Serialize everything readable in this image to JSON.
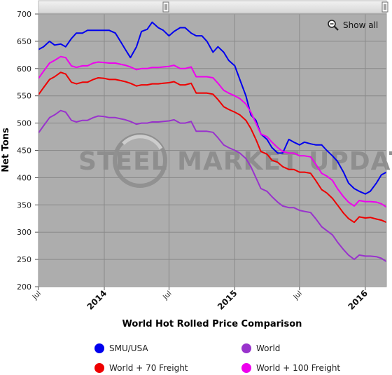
{
  "chart_data": {
    "type": "line",
    "title": "",
    "xlabel": "World Hot Rolled Price Comparison",
    "ylabel": "Net Tons",
    "ylim": [
      200,
      700
    ],
    "yticks": [
      200,
      250,
      300,
      350,
      400,
      450,
      500,
      550,
      600,
      650,
      700
    ],
    "xlim": [
      "2013-07-01",
      "2016-02-29"
    ],
    "xticks": [
      {
        "date": "2013-07-01",
        "label": "Jul",
        "bold": false
      },
      {
        "date": "2014-01-01",
        "label": "2014",
        "bold": true
      },
      {
        "date": "2014-07-01",
        "label": "Jul",
        "bold": false
      },
      {
        "date": "2015-01-01",
        "label": "2015",
        "bold": true
      },
      {
        "date": "2015-07-01",
        "label": "Jul",
        "bold": false
      },
      {
        "date": "2016-01-01",
        "label": "2016",
        "bold": true
      }
    ],
    "grid": true,
    "legend_position": "bottom",
    "watermark": "STEEL MARKET UPDATE",
    "zoom_button": "Show all",
    "series": [
      {
        "name": "SMU/USA",
        "color": "#0000ee",
        "points": [
          [
            "2013-07-01",
            635
          ],
          [
            "2013-07-15",
            640
          ],
          [
            "2013-08-01",
            650
          ],
          [
            "2013-08-15",
            643
          ],
          [
            "2013-09-01",
            645
          ],
          [
            "2013-09-15",
            640
          ],
          [
            "2013-10-01",
            655
          ],
          [
            "2013-10-15",
            665
          ],
          [
            "2013-11-01",
            665
          ],
          [
            "2013-11-15",
            670
          ],
          [
            "2013-12-01",
            670
          ],
          [
            "2013-12-15",
            670
          ],
          [
            "2014-01-01",
            670
          ],
          [
            "2014-01-15",
            670
          ],
          [
            "2014-02-01",
            665
          ],
          [
            "2014-02-15",
            650
          ],
          [
            "2014-03-01",
            635
          ],
          [
            "2014-03-15",
            620
          ],
          [
            "2014-04-01",
            640
          ],
          [
            "2014-04-15",
            668
          ],
          [
            "2014-05-01",
            672
          ],
          [
            "2014-05-15",
            685
          ],
          [
            "2014-06-01",
            675
          ],
          [
            "2014-06-15",
            670
          ],
          [
            "2014-07-01",
            660
          ],
          [
            "2014-07-15",
            668
          ],
          [
            "2014-08-01",
            675
          ],
          [
            "2014-08-15",
            675
          ],
          [
            "2014-09-01",
            665
          ],
          [
            "2014-09-15",
            660
          ],
          [
            "2014-10-01",
            660
          ],
          [
            "2014-10-15",
            650
          ],
          [
            "2014-11-01",
            630
          ],
          [
            "2014-11-15",
            640
          ],
          [
            "2014-12-01",
            630
          ],
          [
            "2014-12-15",
            615
          ],
          [
            "2015-01-01",
            605
          ],
          [
            "2015-01-15",
            580
          ],
          [
            "2015-02-01",
            550
          ],
          [
            "2015-02-15",
            515
          ],
          [
            "2015-03-01",
            505
          ],
          [
            "2015-03-15",
            480
          ],
          [
            "2015-04-01",
            470
          ],
          [
            "2015-04-15",
            455
          ],
          [
            "2015-05-01",
            445
          ],
          [
            "2015-05-15",
            445
          ],
          [
            "2015-06-01",
            470
          ],
          [
            "2015-06-15",
            465
          ],
          [
            "2015-07-01",
            460
          ],
          [
            "2015-07-15",
            465
          ],
          [
            "2015-08-01",
            462
          ],
          [
            "2015-08-15",
            460
          ],
          [
            "2015-09-01",
            460
          ],
          [
            "2015-09-15",
            450
          ],
          [
            "2015-10-01",
            440
          ],
          [
            "2015-10-15",
            430
          ],
          [
            "2015-11-01",
            410
          ],
          [
            "2015-11-15",
            390
          ],
          [
            "2015-12-01",
            380
          ],
          [
            "2015-12-15",
            375
          ],
          [
            "2016-01-01",
            370
          ],
          [
            "2016-01-15",
            375
          ],
          [
            "2016-02-01",
            390
          ],
          [
            "2016-02-15",
            405
          ],
          [
            "2016-02-29",
            410
          ]
        ]
      },
      {
        "name": "World + 70 Freight",
        "color": "#ee0000",
        "points": [
          [
            "2013-07-01",
            552
          ],
          [
            "2013-07-15",
            565
          ],
          [
            "2013-08-01",
            580
          ],
          [
            "2013-08-15",
            585
          ],
          [
            "2013-09-01",
            593
          ],
          [
            "2013-09-15",
            590
          ],
          [
            "2013-10-01",
            575
          ],
          [
            "2013-10-15",
            572
          ],
          [
            "2013-11-01",
            575
          ],
          [
            "2013-11-15",
            575
          ],
          [
            "2013-12-01",
            580
          ],
          [
            "2013-12-15",
            583
          ],
          [
            "2014-01-01",
            582
          ],
          [
            "2014-01-15",
            580
          ],
          [
            "2014-02-01",
            580
          ],
          [
            "2014-02-15",
            578
          ],
          [
            "2014-03-01",
            576
          ],
          [
            "2014-03-15",
            573
          ],
          [
            "2014-04-01",
            568
          ],
          [
            "2014-04-15",
            570
          ],
          [
            "2014-05-01",
            570
          ],
          [
            "2014-05-15",
            572
          ],
          [
            "2014-06-01",
            572
          ],
          [
            "2014-06-15",
            573
          ],
          [
            "2014-07-01",
            574
          ],
          [
            "2014-07-15",
            576
          ],
          [
            "2014-08-01",
            570
          ],
          [
            "2014-08-15",
            570
          ],
          [
            "2014-09-01",
            573
          ],
          [
            "2014-09-15",
            555
          ],
          [
            "2014-10-01",
            555
          ],
          [
            "2014-10-15",
            555
          ],
          [
            "2014-11-01",
            553
          ],
          [
            "2014-11-15",
            543
          ],
          [
            "2014-12-01",
            530
          ],
          [
            "2014-12-15",
            525
          ],
          [
            "2015-01-01",
            520
          ],
          [
            "2015-01-15",
            515
          ],
          [
            "2015-02-01",
            505
          ],
          [
            "2015-02-15",
            490
          ],
          [
            "2015-03-01",
            470
          ],
          [
            "2015-03-15",
            448
          ],
          [
            "2015-04-01",
            443
          ],
          [
            "2015-04-15",
            432
          ],
          [
            "2015-05-01",
            428
          ],
          [
            "2015-05-15",
            420
          ],
          [
            "2015-06-01",
            415
          ],
          [
            "2015-06-15",
            415
          ],
          [
            "2015-07-01",
            410
          ],
          [
            "2015-07-15",
            410
          ],
          [
            "2015-08-01",
            408
          ],
          [
            "2015-08-15",
            395
          ],
          [
            "2015-09-01",
            378
          ],
          [
            "2015-09-15",
            372
          ],
          [
            "2015-10-01",
            362
          ],
          [
            "2015-10-15",
            350
          ],
          [
            "2015-11-01",
            335
          ],
          [
            "2015-11-15",
            325
          ],
          [
            "2015-12-01",
            318
          ],
          [
            "2015-12-15",
            328
          ],
          [
            "2016-01-01",
            326
          ],
          [
            "2016-01-15",
            327
          ],
          [
            "2016-02-01",
            324
          ],
          [
            "2016-02-15",
            322
          ],
          [
            "2016-02-29",
            318
          ]
        ]
      },
      {
        "name": "World",
        "color": "#9933cc",
        "points": [
          [
            "2013-07-01",
            482
          ],
          [
            "2013-07-15",
            495
          ],
          [
            "2013-08-01",
            510
          ],
          [
            "2013-08-15",
            515
          ],
          [
            "2013-09-01",
            523
          ],
          [
            "2013-09-15",
            520
          ],
          [
            "2013-10-01",
            505
          ],
          [
            "2013-10-15",
            502
          ],
          [
            "2013-11-01",
            505
          ],
          [
            "2013-11-15",
            505
          ],
          [
            "2013-12-01",
            510
          ],
          [
            "2013-12-15",
            513
          ],
          [
            "2014-01-01",
            512
          ],
          [
            "2014-01-15",
            510
          ],
          [
            "2014-02-01",
            510
          ],
          [
            "2014-02-15",
            508
          ],
          [
            "2014-03-01",
            506
          ],
          [
            "2014-03-15",
            503
          ],
          [
            "2014-04-01",
            498
          ],
          [
            "2014-04-15",
            500
          ],
          [
            "2014-05-01",
            500
          ],
          [
            "2014-05-15",
            502
          ],
          [
            "2014-06-01",
            502
          ],
          [
            "2014-06-15",
            503
          ],
          [
            "2014-07-01",
            504
          ],
          [
            "2014-07-15",
            506
          ],
          [
            "2014-08-01",
            500
          ],
          [
            "2014-08-15",
            500
          ],
          [
            "2014-09-01",
            503
          ],
          [
            "2014-09-15",
            485
          ],
          [
            "2014-10-01",
            485
          ],
          [
            "2014-10-15",
            485
          ],
          [
            "2014-11-01",
            483
          ],
          [
            "2014-11-15",
            473
          ],
          [
            "2014-12-01",
            460
          ],
          [
            "2014-12-15",
            455
          ],
          [
            "2015-01-01",
            450
          ],
          [
            "2015-01-15",
            445
          ],
          [
            "2015-02-01",
            435
          ],
          [
            "2015-02-15",
            420
          ],
          [
            "2015-03-01",
            400
          ],
          [
            "2015-03-15",
            380
          ],
          [
            "2015-04-01",
            375
          ],
          [
            "2015-04-15",
            365
          ],
          [
            "2015-05-01",
            355
          ],
          [
            "2015-05-15",
            348
          ],
          [
            "2015-06-01",
            345
          ],
          [
            "2015-06-15",
            345
          ],
          [
            "2015-07-01",
            340
          ],
          [
            "2015-07-15",
            338
          ],
          [
            "2015-08-01",
            336
          ],
          [
            "2015-08-15",
            325
          ],
          [
            "2015-09-01",
            310
          ],
          [
            "2015-09-15",
            303
          ],
          [
            "2015-10-01",
            295
          ],
          [
            "2015-10-15",
            282
          ],
          [
            "2015-11-01",
            268
          ],
          [
            "2015-11-15",
            258
          ],
          [
            "2015-12-01",
            250
          ],
          [
            "2015-12-15",
            258
          ],
          [
            "2016-01-01",
            256
          ],
          [
            "2016-01-15",
            256
          ],
          [
            "2016-02-01",
            255
          ],
          [
            "2016-02-15",
            252
          ],
          [
            "2016-02-29",
            246
          ]
        ]
      },
      {
        "name": "World + 100 Freight",
        "color": "#ee00ee",
        "points": [
          [
            "2013-07-01",
            582
          ],
          [
            "2013-07-15",
            595
          ],
          [
            "2013-08-01",
            610
          ],
          [
            "2013-08-15",
            615
          ],
          [
            "2013-09-01",
            622
          ],
          [
            "2013-09-15",
            620
          ],
          [
            "2013-10-01",
            605
          ],
          [
            "2013-10-15",
            602
          ],
          [
            "2013-11-01",
            605
          ],
          [
            "2013-11-15",
            605
          ],
          [
            "2013-12-01",
            610
          ],
          [
            "2013-12-15",
            612
          ],
          [
            "2014-01-01",
            611
          ],
          [
            "2014-01-15",
            610
          ],
          [
            "2014-02-01",
            610
          ],
          [
            "2014-02-15",
            608
          ],
          [
            "2014-03-01",
            606
          ],
          [
            "2014-03-15",
            603
          ],
          [
            "2014-04-01",
            598
          ],
          [
            "2014-04-15",
            600
          ],
          [
            "2014-05-01",
            600
          ],
          [
            "2014-05-15",
            602
          ],
          [
            "2014-06-01",
            602
          ],
          [
            "2014-06-15",
            603
          ],
          [
            "2014-07-01",
            604
          ],
          [
            "2014-07-15",
            606
          ],
          [
            "2014-08-01",
            600
          ],
          [
            "2014-08-15",
            600
          ],
          [
            "2014-09-01",
            603
          ],
          [
            "2014-09-15",
            585
          ],
          [
            "2014-10-01",
            585
          ],
          [
            "2014-10-15",
            585
          ],
          [
            "2014-11-01",
            583
          ],
          [
            "2014-11-15",
            573
          ],
          [
            "2014-12-01",
            560
          ],
          [
            "2014-12-15",
            555
          ],
          [
            "2015-01-01",
            550
          ],
          [
            "2015-01-15",
            545
          ],
          [
            "2015-02-01",
            535
          ],
          [
            "2015-02-15",
            520
          ],
          [
            "2015-03-01",
            500
          ],
          [
            "2015-03-15",
            480
          ],
          [
            "2015-04-01",
            475
          ],
          [
            "2015-04-15",
            465
          ],
          [
            "2015-05-01",
            455
          ],
          [
            "2015-05-15",
            448
          ],
          [
            "2015-06-01",
            445
          ],
          [
            "2015-06-15",
            445
          ],
          [
            "2015-07-01",
            440
          ],
          [
            "2015-07-15",
            440
          ],
          [
            "2015-08-01",
            438
          ],
          [
            "2015-08-15",
            425
          ],
          [
            "2015-09-01",
            408
          ],
          [
            "2015-09-15",
            403
          ],
          [
            "2015-10-01",
            395
          ],
          [
            "2015-10-15",
            380
          ],
          [
            "2015-11-01",
            365
          ],
          [
            "2015-11-15",
            355
          ],
          [
            "2015-12-01",
            348
          ],
          [
            "2015-12-15",
            358
          ],
          [
            "2016-01-01",
            356
          ],
          [
            "2016-01-15",
            356
          ],
          [
            "2016-02-01",
            355
          ],
          [
            "2016-02-15",
            352
          ],
          [
            "2016-02-29",
            346
          ]
        ]
      }
    ],
    "legend_order": [
      "SMU/USA",
      "World",
      "World + 70 Freight",
      "World + 100 Freight"
    ]
  }
}
